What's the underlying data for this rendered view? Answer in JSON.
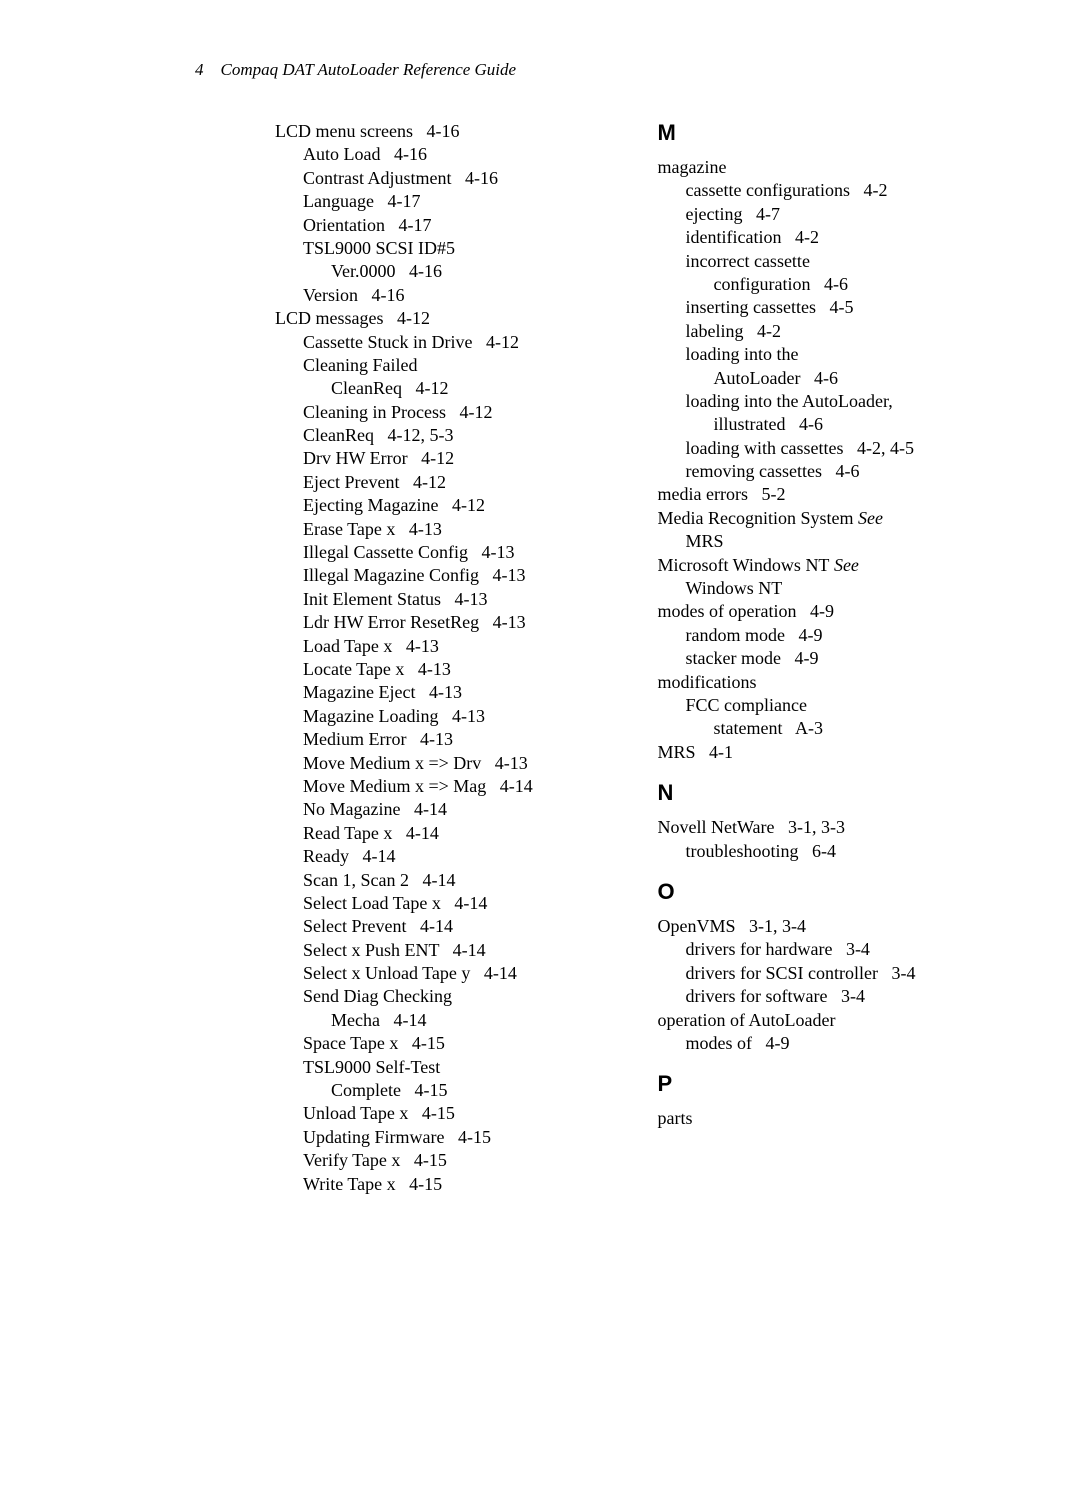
{
  "header": {
    "page_number": "4",
    "title": "Compaq DAT AutoLoader Reference Guide"
  },
  "left_column": [
    {
      "lvl": 0,
      "text": "LCD menu screens",
      "pg": "4-16"
    },
    {
      "lvl": 1,
      "text": "Auto Load",
      "pg": "4-16"
    },
    {
      "lvl": 1,
      "text": "Contrast Adjustment",
      "pg": "4-16"
    },
    {
      "lvl": 1,
      "text": "Language",
      "pg": "4-17"
    },
    {
      "lvl": 1,
      "text": "Orientation",
      "pg": "4-17"
    },
    {
      "lvl": 1,
      "text": "TSL9000 SCSI ID#5"
    },
    {
      "lvl": 2,
      "text": "Ver.0000",
      "pg": "4-16"
    },
    {
      "lvl": 1,
      "text": "Version",
      "pg": "4-16"
    },
    {
      "lvl": 0,
      "text": "LCD messages",
      "pg": "4-12"
    },
    {
      "lvl": 1,
      "text": "Cassette Stuck in Drive",
      "pg": "4-12"
    },
    {
      "lvl": 1,
      "text": "Cleaning Failed"
    },
    {
      "lvl": 2,
      "text": "CleanReq",
      "pg": "4-12"
    },
    {
      "lvl": 1,
      "text": "Cleaning in Process",
      "pg": "4-12"
    },
    {
      "lvl": 1,
      "text": "CleanReq",
      "pg": "4-12, 5-3"
    },
    {
      "lvl": 1,
      "text": "Drv HW Error",
      "pg": "4-12"
    },
    {
      "lvl": 1,
      "text": "Eject Prevent",
      "pg": "4-12"
    },
    {
      "lvl": 1,
      "text": "Ejecting Magazine",
      "pg": "4-12"
    },
    {
      "lvl": 1,
      "text": "Erase Tape x",
      "pg": "4-13"
    },
    {
      "lvl": 1,
      "text": "Illegal Cassette Config",
      "pg": "4-13"
    },
    {
      "lvl": 1,
      "text": "Illegal Magazine Config",
      "pg": "4-13"
    },
    {
      "lvl": 1,
      "text": "Init Element Status",
      "pg": "4-13"
    },
    {
      "lvl": 1,
      "text": "Ldr HW Error ResetReg",
      "pg": "4-13"
    },
    {
      "lvl": 1,
      "text": "Load Tape x",
      "pg": "4-13"
    },
    {
      "lvl": 1,
      "text": "Locate Tape x",
      "pg": "4-13"
    },
    {
      "lvl": 1,
      "text": "Magazine Eject",
      "pg": "4-13"
    },
    {
      "lvl": 1,
      "text": "Magazine Loading",
      "pg": "4-13"
    },
    {
      "lvl": 1,
      "text": "Medium Error",
      "pg": "4-13"
    },
    {
      "lvl": 1,
      "text": "Move Medium x => Drv",
      "pg": "4-13"
    },
    {
      "lvl": 1,
      "text": "Move Medium x => Mag",
      "pg": "4-14"
    },
    {
      "lvl": 1,
      "text": "No Magazine",
      "pg": "4-14"
    },
    {
      "lvl": 1,
      "text": "Read Tape x",
      "pg": "4-14"
    },
    {
      "lvl": 1,
      "text": "Ready",
      "pg": "4-14"
    },
    {
      "lvl": 1,
      "text": "Scan 1, Scan 2",
      "pg": "4-14"
    },
    {
      "lvl": 1,
      "text": "Select Load Tape x",
      "pg": "4-14"
    },
    {
      "lvl": 1,
      "text": "Select Prevent",
      "pg": "4-14"
    },
    {
      "lvl": 1,
      "text": "Select x Push ENT",
      "pg": "4-14"
    },
    {
      "lvl": 1,
      "text": "Select x Unload Tape y",
      "pg": "4-14"
    },
    {
      "lvl": 1,
      "text": "Send Diag Checking"
    },
    {
      "lvl": 2,
      "text": "Mecha",
      "pg": "4-14"
    },
    {
      "lvl": 1,
      "text": "Space Tape x",
      "pg": "4-15"
    },
    {
      "lvl": 1,
      "text": "TSL9000 Self-Test"
    },
    {
      "lvl": 2,
      "text": "Complete",
      "pg": "4-15"
    },
    {
      "lvl": 1,
      "text": "Unload Tape x",
      "pg": "4-15"
    },
    {
      "lvl": 1,
      "text": "Updating Firmware",
      "pg": "4-15"
    },
    {
      "lvl": 1,
      "text": "Verify Tape x",
      "pg": "4-15"
    },
    {
      "lvl": 1,
      "text": "Write Tape x",
      "pg": "4-15"
    }
  ],
  "right_column": [
    {
      "type": "section",
      "letter": "M",
      "first": true
    },
    {
      "lvl": 0,
      "text": "magazine"
    },
    {
      "lvl": 1,
      "text": "cassette configurations",
      "pg": "4-2"
    },
    {
      "lvl": 1,
      "text": "ejecting",
      "pg": "4-7"
    },
    {
      "lvl": 1,
      "text": "identification",
      "pg": "4-2"
    },
    {
      "lvl": 1,
      "text": "incorrect cassette"
    },
    {
      "lvl": 2,
      "text": "configuration",
      "pg": "4-6"
    },
    {
      "lvl": 1,
      "text": "inserting cassettes",
      "pg": "4-5"
    },
    {
      "lvl": 1,
      "text": "labeling",
      "pg": "4-2"
    },
    {
      "lvl": 1,
      "text": "loading into the"
    },
    {
      "lvl": 2,
      "text": "AutoLoader",
      "pg": "4-6"
    },
    {
      "lvl": 1,
      "text": "loading into the AutoLoader,"
    },
    {
      "lvl": 2,
      "text": "illustrated",
      "pg": "4-6"
    },
    {
      "lvl": 1,
      "text": "loading with cassettes",
      "pg": "4-2, 4-5"
    },
    {
      "lvl": 1,
      "text": "removing cassettes",
      "pg": "4-6"
    },
    {
      "lvl": 0,
      "text": "media errors",
      "pg": "5-2"
    },
    {
      "lvl": 0,
      "text": "Media Recognition System",
      "see": "See"
    },
    {
      "lvl": 1,
      "text": "MRS"
    },
    {
      "lvl": 0,
      "text": "Microsoft Windows NT",
      "see": "See"
    },
    {
      "lvl": 1,
      "text": "Windows NT"
    },
    {
      "lvl": 0,
      "text": "modes of operation",
      "pg": "4-9"
    },
    {
      "lvl": 1,
      "text": "random mode",
      "pg": "4-9"
    },
    {
      "lvl": 1,
      "text": "stacker mode",
      "pg": "4-9"
    },
    {
      "lvl": 0,
      "text": "modifications"
    },
    {
      "lvl": 1,
      "text": "FCC compliance"
    },
    {
      "lvl": 2,
      "text": "statement",
      "pg": "A-3"
    },
    {
      "lvl": 0,
      "text": "MRS",
      "pg": "4-1"
    },
    {
      "type": "section",
      "letter": "N"
    },
    {
      "lvl": 0,
      "text": "Novell NetWare",
      "pg": "3-1, 3-3"
    },
    {
      "lvl": 1,
      "text": "troubleshooting",
      "pg": "6-4"
    },
    {
      "type": "section",
      "letter": "O"
    },
    {
      "lvl": 0,
      "text": "OpenVMS",
      "pg": "3-1, 3-4"
    },
    {
      "lvl": 1,
      "text": "drivers for hardware",
      "pg": "3-4"
    },
    {
      "lvl": 1,
      "text": "drivers for SCSI controller",
      "pg": "3-4"
    },
    {
      "lvl": 1,
      "text": "drivers for software",
      "pg": "3-4"
    },
    {
      "lvl": 0,
      "text": "operation of AutoLoader"
    },
    {
      "lvl": 1,
      "text": "modes of",
      "pg": "4-9"
    },
    {
      "type": "section",
      "letter": "P"
    },
    {
      "lvl": 0,
      "text": "parts"
    }
  ]
}
